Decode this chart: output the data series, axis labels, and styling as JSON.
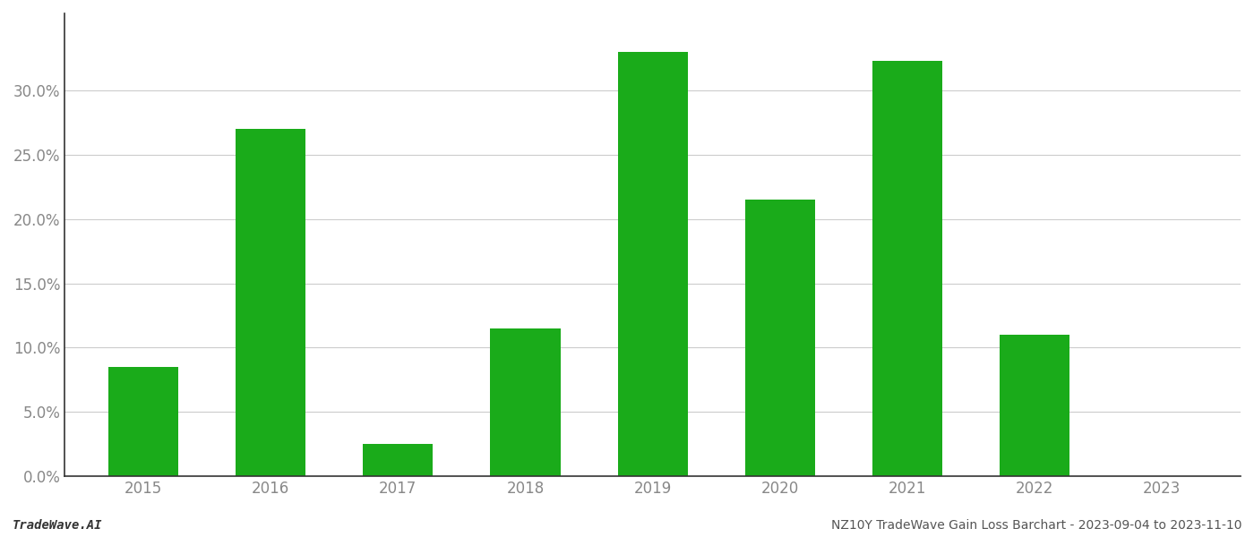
{
  "years": [
    "2015",
    "2016",
    "2017",
    "2018",
    "2019",
    "2020",
    "2021",
    "2022",
    "2023"
  ],
  "values": [
    0.085,
    0.27,
    0.025,
    0.115,
    0.33,
    0.215,
    0.323,
    0.11,
    0.0
  ],
  "bar_color": "#1aab1a",
  "footer_left": "TradeWave.AI",
  "footer_right": "NZ10Y TradeWave Gain Loss Barchart - 2023-09-04 to 2023-11-10",
  "ylim": [
    0.0,
    0.36
  ],
  "yticks": [
    0.0,
    0.05,
    0.1,
    0.15,
    0.2,
    0.25,
    0.3
  ],
  "grid_color": "#cccccc",
  "background_color": "#ffffff",
  "bar_width": 0.55,
  "footer_fontsize": 10,
  "tick_fontsize": 12,
  "tick_color": "#888888",
  "spine_color": "#333333"
}
